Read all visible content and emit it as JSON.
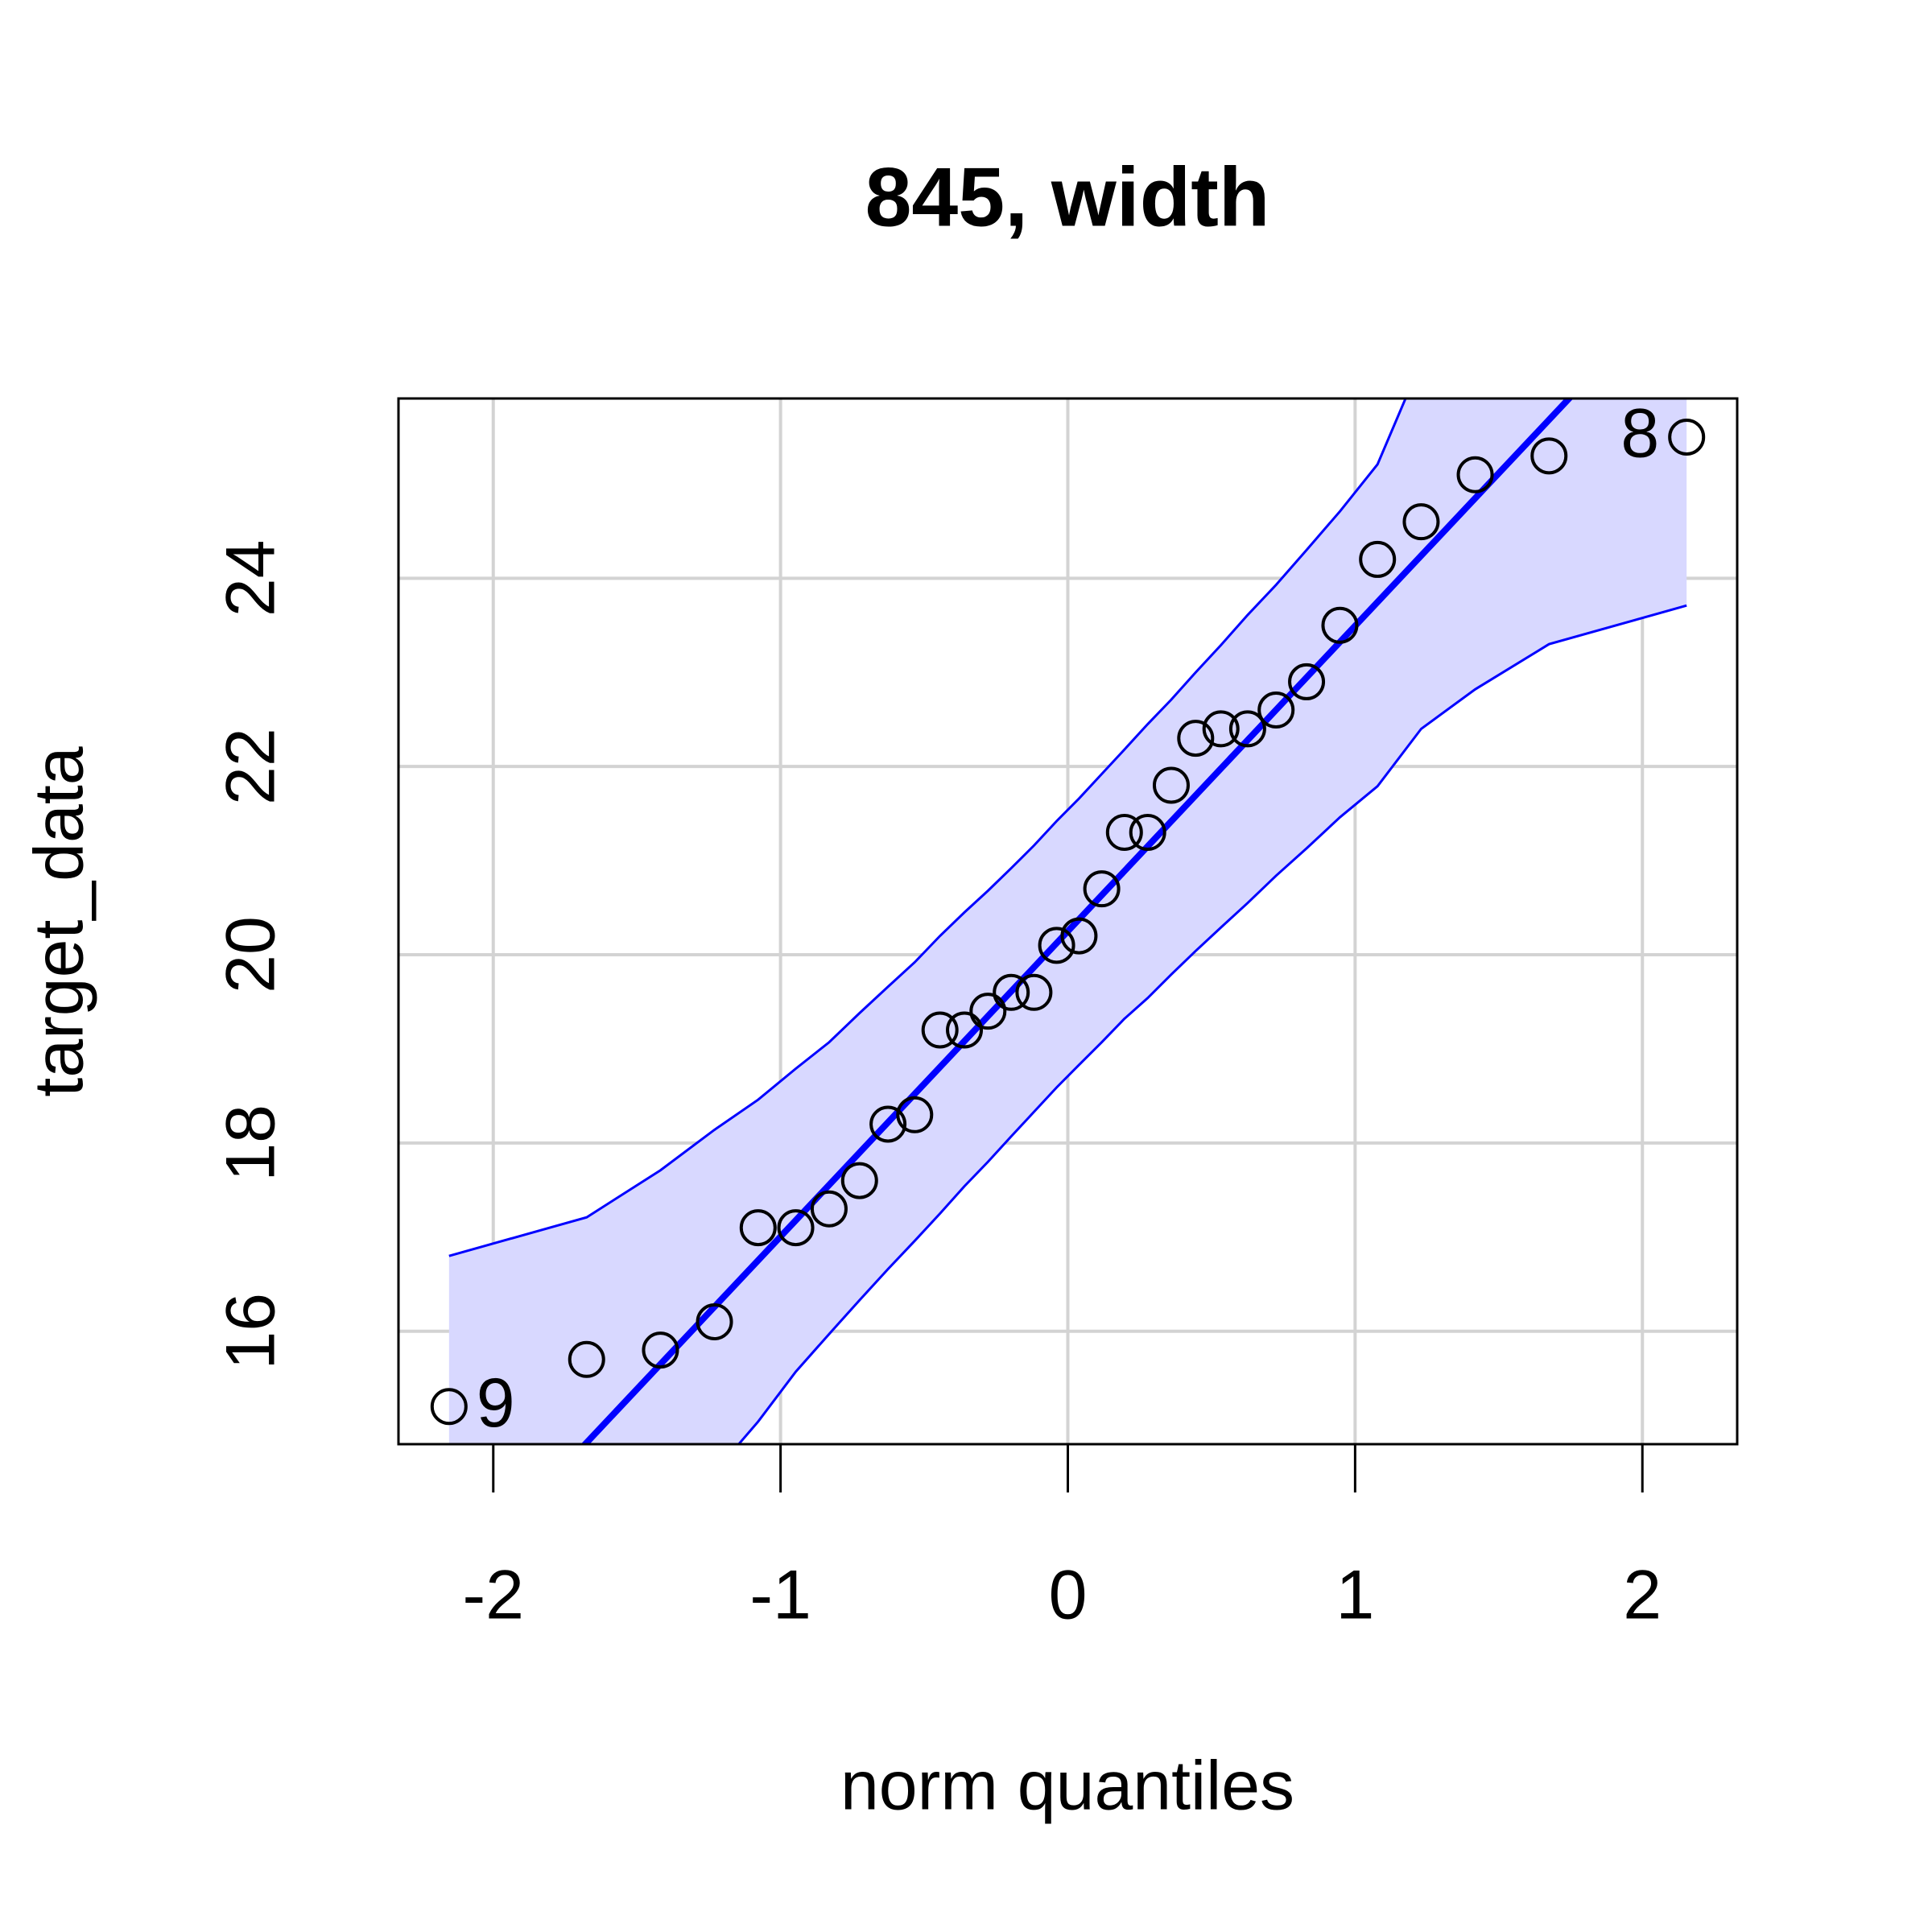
{
  "chart_data": {
    "type": "qq",
    "title": "845, width",
    "x_label": "norm quantiles",
    "y_label": "target_data",
    "x": [
      -2.154,
      -1.675,
      -1.418,
      -1.23,
      -1.078,
      -0.947,
      -0.831,
      -0.725,
      -0.626,
      -0.533,
      -0.445,
      -0.36,
      -0.278,
      -0.197,
      -0.118,
      -0.039,
      0.039,
      0.118,
      0.197,
      0.278,
      0.36,
      0.445,
      0.533,
      0.626,
      0.725,
      0.831,
      0.947,
      1.078,
      1.23,
      1.418,
      1.675,
      2.154
    ],
    "values": [
      15.2,
      15.7,
      15.8,
      16.1,
      17.1,
      17.1,
      17.3,
      17.6,
      18.2,
      18.3,
      19.2,
      19.2,
      19.4,
      19.6,
      19.6,
      20.1,
      20.2,
      20.7,
      21.3,
      21.3,
      21.8,
      22.3,
      22.4,
      22.4,
      22.6,
      22.9,
      23.5,
      24.2,
      24.6,
      25.1,
      25.3,
      25.5
    ],
    "point_labels": [
      "9",
      null,
      null,
      null,
      null,
      null,
      null,
      null,
      null,
      null,
      null,
      null,
      null,
      null,
      null,
      null,
      null,
      null,
      null,
      null,
      null,
      null,
      null,
      null,
      null,
      null,
      null,
      null,
      null,
      null,
      null,
      "8"
    ],
    "envelope_upper": [
      16.8,
      17.21,
      17.71,
      18.14,
      18.46,
      18.79,
      19.07,
      19.38,
      19.66,
      19.92,
      20.2,
      20.45,
      20.68,
      20.92,
      21.16,
      21.42,
      21.66,
      21.92,
      22.18,
      22.45,
      22.71,
      23.0,
      23.29,
      23.61,
      23.93,
      24.3,
      24.71,
      25.21,
      26.3,
      27.0,
      28.0,
      29.8
    ],
    "envelope_lower": [
      11.3,
      13.0,
      13.9,
      14.5,
      15.04,
      15.57,
      15.97,
      16.33,
      16.66,
      16.96,
      17.25,
      17.54,
      17.8,
      18.07,
      18.33,
      18.59,
      18.83,
      19.07,
      19.32,
      19.54,
      19.79,
      20.04,
      20.29,
      20.55,
      20.84,
      21.13,
      21.46,
      21.79,
      22.4,
      22.82,
      23.3,
      23.71
    ],
    "reference_line": {
      "intercept": 20.25,
      "slope": 3.244
    },
    "line_color": "#0000ff",
    "envelope_fill": "#d8d8ff",
    "point_color": "#000000",
    "xlim": [
      -2.33,
      2.33
    ],
    "ylim": [
      14.8,
      25.91
    ],
    "xticks": [
      -2,
      -1,
      0,
      1,
      2
    ],
    "yticks": [
      16,
      18,
      20,
      22,
      24
    ],
    "grid": true
  }
}
